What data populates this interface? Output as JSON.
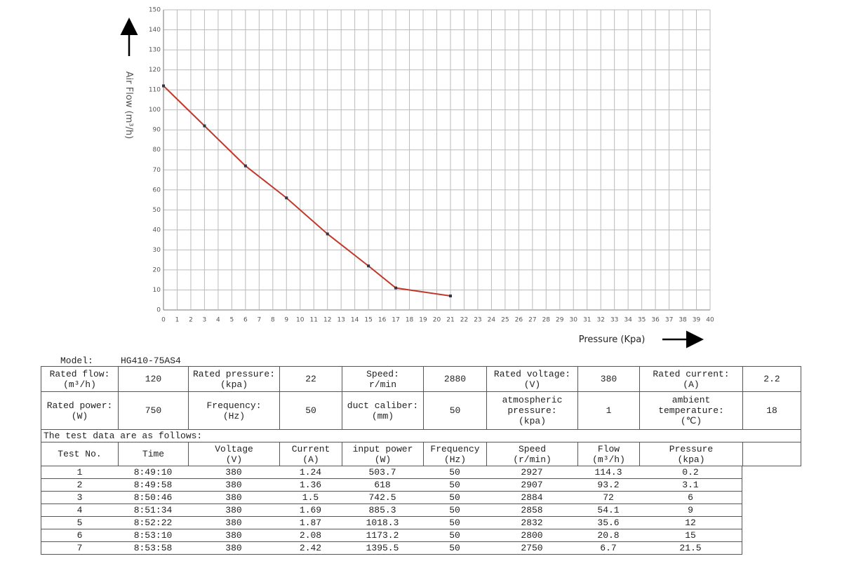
{
  "chart_data": {
    "type": "line",
    "x_label": "Pressure (Kpa)",
    "y_label": "Air Flow (m³/h)",
    "x": [
      0,
      3,
      6,
      9,
      12,
      15,
      17,
      21
    ],
    "values": [
      112,
      92,
      72,
      56,
      38,
      22,
      11,
      7
    ],
    "color": "#c0392b",
    "xlim": [
      0,
      40
    ],
    "xticks": [
      0,
      1,
      2,
      3,
      4,
      5,
      6,
      7,
      8,
      9,
      10,
      11,
      12,
      13,
      14,
      15,
      16,
      17,
      18,
      19,
      20,
      21,
      22,
      23,
      24,
      25,
      26,
      27,
      28,
      29,
      30,
      31,
      32,
      33,
      34,
      35,
      36,
      37,
      38,
      39,
      40
    ],
    "ylim": [
      0,
      150
    ],
    "yticks": [
      0,
      10,
      20,
      30,
      40,
      50,
      60,
      70,
      80,
      90,
      100,
      110,
      120,
      130,
      140,
      150
    ],
    "grid": true
  },
  "model": {
    "label": "Model:",
    "value": "HG410-75AS4"
  },
  "spec": {
    "rows": [
      [
        "Rated flow:\n(m³/h)",
        "120",
        "Rated pressure:\n(kpa)",
        "22",
        "Speed:\nr/min",
        "2880",
        "Rated voltage:\n(V)",
        "380",
        "Rated current:\n(A)",
        "2.2"
      ],
      [
        "Rated power:\n(W)",
        "750",
        "Frequency:\n(Hz)",
        "50",
        "duct caliber:\n(mm)",
        "50",
        "atmospheric\npressure:\n(kpa)",
        "1",
        "ambient\ntemperature:\n(℃)",
        "18"
      ]
    ]
  },
  "test": {
    "caption": "The test data are as follows:",
    "header": [
      "Test No.",
      "Time",
      "Voltage\n(V)",
      "Current\n(A)",
      "input power\n(W)",
      "Frequency\n(Hz)",
      "Speed\n(r/min)",
      "Flow\n(m³/h)",
      "Pressure\n(kpa)"
    ],
    "rows": [
      [
        "1",
        "8:49:10",
        "380",
        "1.24",
        "503.7",
        "50",
        "2927",
        "114.3",
        "0.2"
      ],
      [
        "2",
        "8:49:58",
        "380",
        "1.36",
        "618",
        "50",
        "2907",
        "93.2",
        "3.1"
      ],
      [
        "3",
        "8:50:46",
        "380",
        "1.5",
        "742.5",
        "50",
        "2884",
        "72",
        "6"
      ],
      [
        "4",
        "8:51:34",
        "380",
        "1.69",
        "885.3",
        "50",
        "2858",
        "54.1",
        "9"
      ],
      [
        "5",
        "8:52:22",
        "380",
        "1.87",
        "1018.3",
        "50",
        "2832",
        "35.6",
        "12"
      ],
      [
        "6",
        "8:53:10",
        "380",
        "2.08",
        "1173.2",
        "50",
        "2800",
        "20.8",
        "15"
      ],
      [
        "7",
        "8:53:58",
        "380",
        "2.42",
        "1395.5",
        "50",
        "2750",
        "6.7",
        "21.5"
      ]
    ]
  }
}
